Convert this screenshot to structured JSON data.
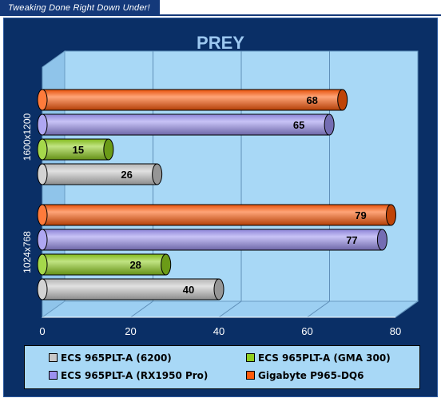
{
  "header": {
    "tagline": "Tweaking Done Right Down Under!"
  },
  "chart_data": {
    "type": "bar",
    "orientation": "horizontal",
    "title": "PREY",
    "categories": [
      "1600x1200",
      "1024x768"
    ],
    "series": [
      {
        "name": "ECS 965PLT-A (6200)",
        "values": [
          26,
          40
        ],
        "color": "#c8c8c8"
      },
      {
        "name": "ECS 965PLT-A (GMA 300)",
        "values": [
          15,
          28
        ],
        "color": "#8fce1e"
      },
      {
        "name": "ECS 965PLT-A (RX1950 Pro)",
        "values": [
          65,
          77
        ],
        "color": "#9b91ef"
      },
      {
        "name": "Gigabyte P965-DQ6",
        "values": [
          68,
          79
        ],
        "color": "#ff5a0a"
      }
    ],
    "xlim": [
      0,
      80
    ],
    "xticks": [
      "0",
      "20",
      "40",
      "60",
      "80"
    ],
    "grid": true,
    "legend_position": "bottom"
  }
}
